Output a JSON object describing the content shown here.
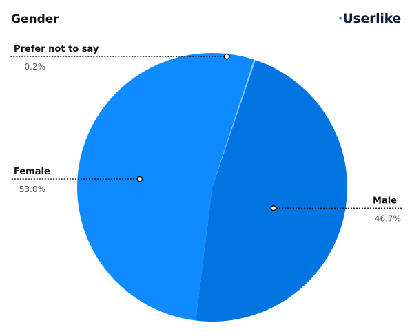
{
  "header": {
    "title": "Gender",
    "brand": "Userlike"
  },
  "colors": {
    "Female": "#0f8bff",
    "Male": "#0074e0",
    "Prefer not to say": "#7ec8ff"
  },
  "chart_data": {
    "type": "pie",
    "title": "Gender",
    "categories": [
      "Prefer not to say",
      "Male",
      "Female"
    ],
    "values": [
      0.2,
      46.7,
      53.0
    ],
    "data_labels": [
      "0.2%",
      "46.7%",
      "53.0%"
    ],
    "legend": "none"
  }
}
